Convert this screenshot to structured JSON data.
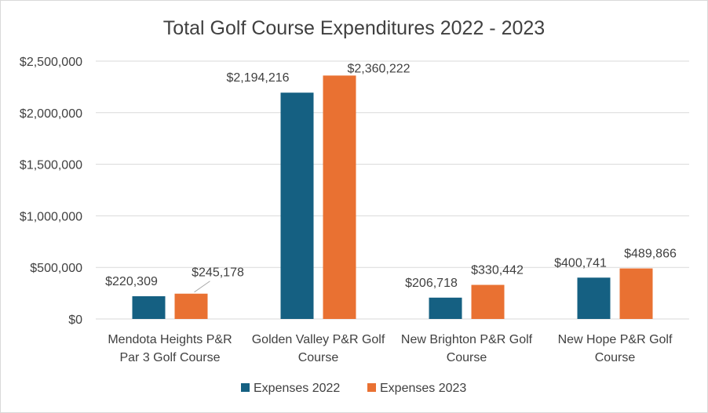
{
  "chart_data": {
    "type": "bar",
    "title": "Total Golf Course Expenditures 2022 - 2023",
    "xlabel": "",
    "ylabel": "",
    "ylim": [
      0,
      2500000
    ],
    "yticks": [
      0,
      500000,
      1000000,
      1500000,
      2000000,
      2500000
    ],
    "ytick_labels": [
      "$0",
      "$500,000",
      "$1,000,000",
      "$1,500,000",
      "$2,000,000",
      "$2,500,000"
    ],
    "categories": [
      [
        "Mendota Heights P&R",
        "Par 3 Golf Course"
      ],
      [
        "Golden Valley P&R Golf",
        "Course"
      ],
      [
        "New Brighton P&R Golf",
        "Course"
      ],
      [
        "New Hope P&R Golf",
        "Course"
      ]
    ],
    "series": [
      {
        "name": "Expenses 2022",
        "color": "#156082",
        "values": [
          220309,
          2194216,
          206718,
          400741
        ],
        "labels": [
          "$220,309",
          "$2,194,216",
          "$206,718",
          "$400,741"
        ]
      },
      {
        "name": "Expenses 2023",
        "color": "#E97132",
        "values": [
          245178,
          2360222,
          330442,
          489866
        ],
        "labels": [
          "$245,178",
          "$2,360,222",
          "$330,442",
          "$489,866"
        ]
      }
    ],
    "grid": true,
    "legend_position": "bottom"
  }
}
